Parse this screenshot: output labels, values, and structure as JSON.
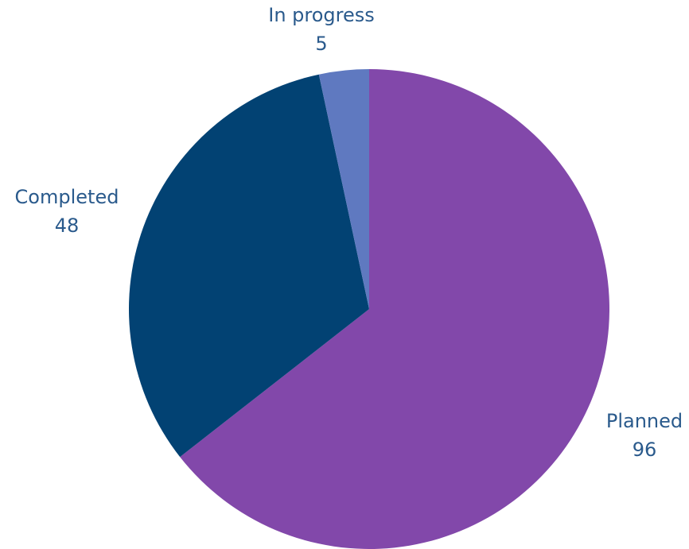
{
  "chart_data": {
    "type": "pie",
    "start_angle": "12 o'clock",
    "direction": "clockwise",
    "slices": [
      {
        "name": "Planned",
        "value": 96,
        "color": "#8248aa"
      },
      {
        "name": "Completed",
        "value": 48,
        "color": "#024273"
      },
      {
        "name": "In progress",
        "value": 5,
        "color": "#5f79c0"
      }
    ],
    "label_color": "#2a5a8c",
    "legend": "none"
  }
}
